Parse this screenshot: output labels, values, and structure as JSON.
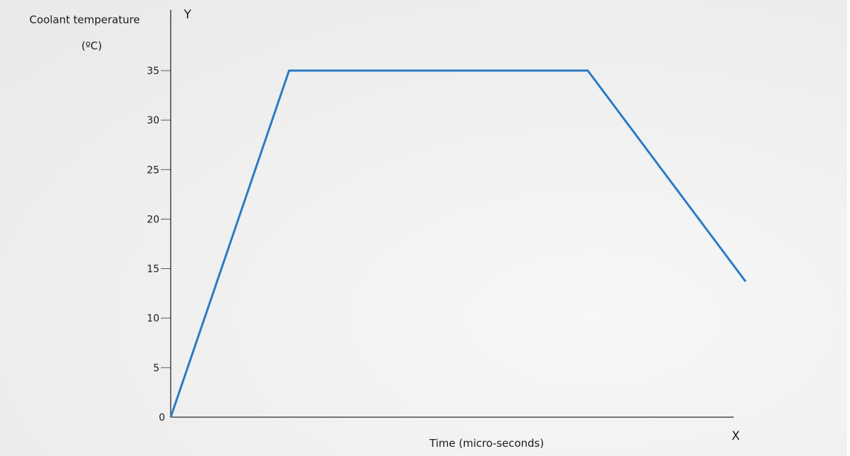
{
  "chart_data": {
    "type": "line",
    "ylabel_line1": "Coolant temperature",
    "ylabel_line2": "(ºC)",
    "xlabel": "Time (micro-seconds)",
    "x_axis_letter": "X",
    "y_axis_letter": "Y",
    "y_ticks": [
      0,
      5,
      10,
      15,
      20,
      25,
      30,
      35
    ],
    "y_tick_labels": [
      "0",
      "5",
      "10",
      "15",
      "20",
      "25",
      "30",
      "35"
    ],
    "ylim": [
      0,
      35
    ],
    "x_ticks_shown": false,
    "grid": false,
    "series": [
      {
        "color": "#2a7bc4",
        "points": [
          {
            "x": 0,
            "y": 0
          },
          {
            "x": 0.21,
            "y": 35
          },
          {
            "x": 0.74,
            "y": 35
          },
          {
            "x": 1.02,
            "y": 13.7
          }
        ]
      }
    ]
  }
}
